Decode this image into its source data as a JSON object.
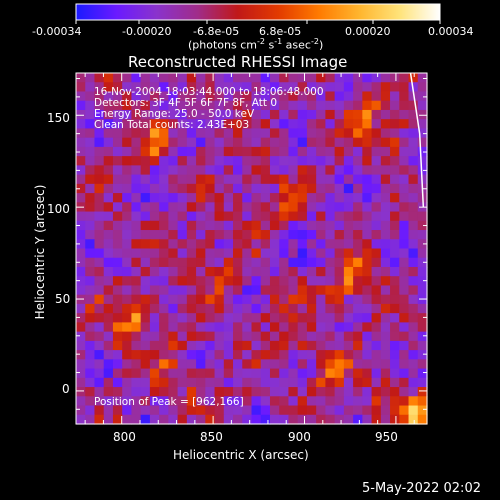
{
  "colorbar": {
    "tick_labels": [
      "-0.00034",
      "-0.00020",
      "-6.8e-05",
      "6.8e-05",
      "0.00020",
      "0.00034"
    ],
    "units_text": "(photons cm",
    "units_exp1": "-2",
    "units_mid1": " s",
    "units_exp2": "-1",
    "units_mid2": " asec",
    "units_exp3": "-2",
    "units_end": ")",
    "colors": [
      "#1a1aff",
      "#6a1aff",
      "#8a33cc",
      "#a02c8a",
      "#c01818",
      "#e23a00",
      "#ff7a00",
      "#ffb52e",
      "#ffe37a",
      "#ffffff"
    ]
  },
  "plot": {
    "title": "Reconstructed RHESSI Image",
    "xlabel": "Heliocentric X (arcsec)",
    "ylabel": "Heliocentric Y (arcsec)",
    "x_ticks": [
      "800",
      "850",
      "900",
      "950"
    ],
    "y_ticks": [
      "0",
      "50",
      "100",
      "150"
    ],
    "info_lines": [
      "16-Nov-2004 18:03:44.000 to 18:06:48.000",
      "Detectors: 3F 4F 5F 6F 7F 8F, Att 0",
      "Energy Range: 25.0 - 50.0 keV",
      "Clean     Total counts: 2.43E+03"
    ],
    "peak_text": "Position of Peak = [962,166]"
  },
  "footer": {
    "date": "5-May-2022 02:02"
  },
  "chart_data": {
    "type": "heatmap",
    "title": "Reconstructed RHESSI Image",
    "xlabel": "Heliocentric X (arcsec)",
    "ylabel": "Heliocentric Y (arcsec)",
    "xlim": [
      775,
      967
    ],
    "ylim": [
      -18,
      173
    ],
    "colorbar_range": [
      -0.00034,
      0.00034
    ],
    "peak": [
      962,
      166
    ]
  }
}
